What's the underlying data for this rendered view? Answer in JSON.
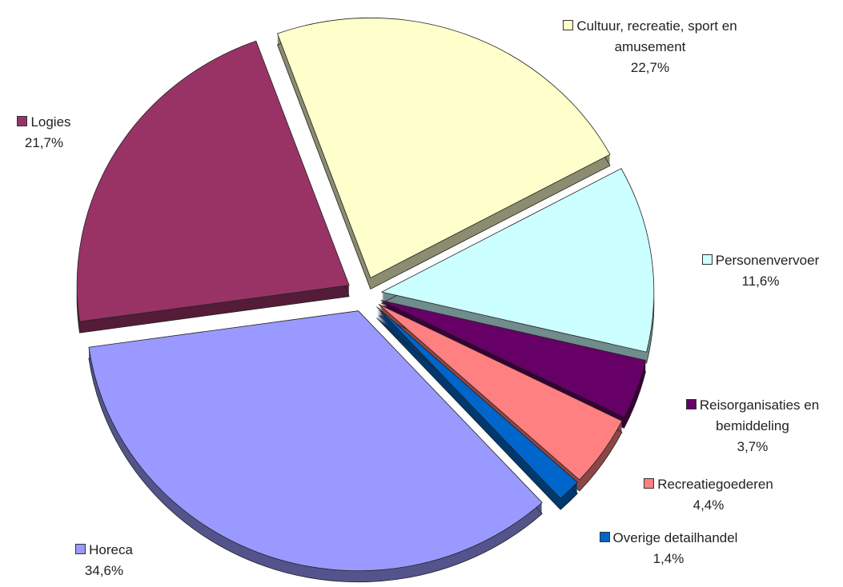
{
  "chart_data": {
    "type": "pie",
    "categories": [
      "Cultuur, recreatie, sport en amusement",
      "Personenvervoer",
      "Reisorganisaties en bemiddeling",
      "Recreatiegoederen",
      "Overige detailhandel",
      "Horeca",
      "Logies"
    ],
    "values": [
      22.7,
      11.6,
      3.7,
      4.4,
      1.4,
      34.6,
      21.7
    ],
    "value_labels": [
      "22,7%",
      "11,6%",
      "3,7%",
      "4,4%",
      "1,4%",
      "34,6%",
      "21,7%"
    ],
    "colors": [
      "#FFFFCC",
      "#CCFFFF",
      "#660066",
      "#FF8080",
      "#0066CC",
      "#9999FF",
      "#993366"
    ]
  }
}
